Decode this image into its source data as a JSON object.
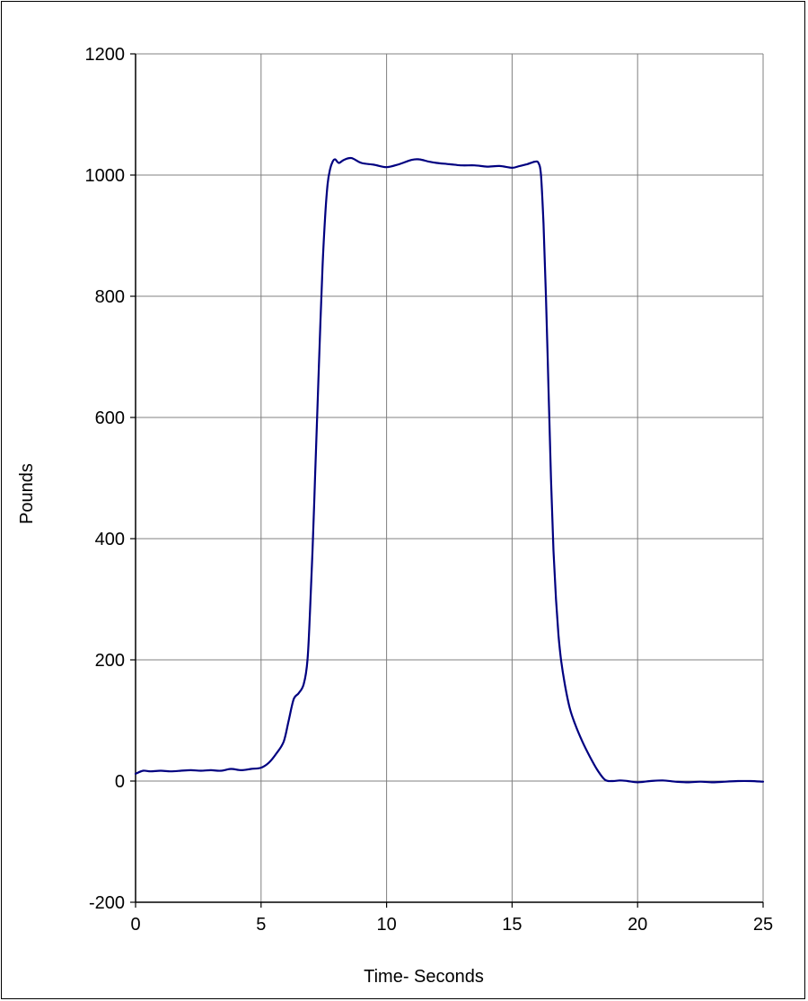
{
  "chart_data": {
    "type": "line",
    "title": "",
    "xlabel": "Time- Seconds",
    "ylabel": "Pounds",
    "xlim": [
      0,
      25
    ],
    "ylim": [
      -200,
      1200
    ],
    "xticks": [
      0,
      5,
      10,
      15,
      20,
      25
    ],
    "yticks": [
      -200,
      0,
      200,
      400,
      600,
      800,
      1000,
      1200
    ],
    "grid": true,
    "legend": "none",
    "colors": {
      "line": "#000080",
      "grid": "#808080",
      "axis": "#000000"
    },
    "series": [
      {
        "x": [
          0,
          0.3,
          0.6,
          1,
          1.4,
          1.8,
          2.2,
          2.6,
          3,
          3.4,
          3.8,
          4.2,
          4.6,
          5,
          5.3,
          5.6,
          5.9,
          6.1,
          6.3,
          6.5,
          6.7,
          6.85,
          6.95,
          7.05,
          7.15,
          7.25,
          7.35,
          7.45,
          7.55,
          7.65,
          7.75,
          7.85,
          7.95,
          8.1,
          8.3,
          8.6,
          9,
          9.5,
          10,
          10.5,
          11,
          11.3,
          11.7,
          12,
          12.5,
          13,
          13.5,
          14,
          14.5,
          15,
          15.3,
          15.6,
          15.9,
          16.05,
          16.15,
          16.25,
          16.35,
          16.45,
          16.55,
          16.65,
          16.75,
          16.85,
          16.95,
          17.1,
          17.3,
          17.5,
          17.8,
          18.1,
          18.4,
          18.7,
          19,
          19.3,
          19.6,
          20,
          20.5,
          21,
          21.5,
          22,
          22.5,
          23,
          23.5,
          24,
          24.5,
          25
        ],
        "y": [
          12,
          17,
          16,
          17,
          16,
          17,
          18,
          17,
          18,
          17,
          20,
          18,
          20,
          22,
          30,
          45,
          65,
          100,
          135,
          145,
          160,
          200,
          280,
          380,
          500,
          620,
          740,
          850,
          930,
          985,
          1010,
          1022,
          1026,
          1020,
          1025,
          1028,
          1020,
          1017,
          1013,
          1018,
          1025,
          1026,
          1022,
          1020,
          1018,
          1016,
          1016,
          1014,
          1015,
          1012,
          1015,
          1018,
          1022,
          1020,
          1000,
          920,
          800,
          650,
          500,
          380,
          300,
          240,
          200,
          160,
          120,
          95,
          65,
          40,
          18,
          2,
          0,
          1,
          0,
          -2,
          0,
          1,
          -1,
          -2,
          -1,
          -2,
          -1,
          0,
          0,
          -1
        ]
      }
    ]
  }
}
